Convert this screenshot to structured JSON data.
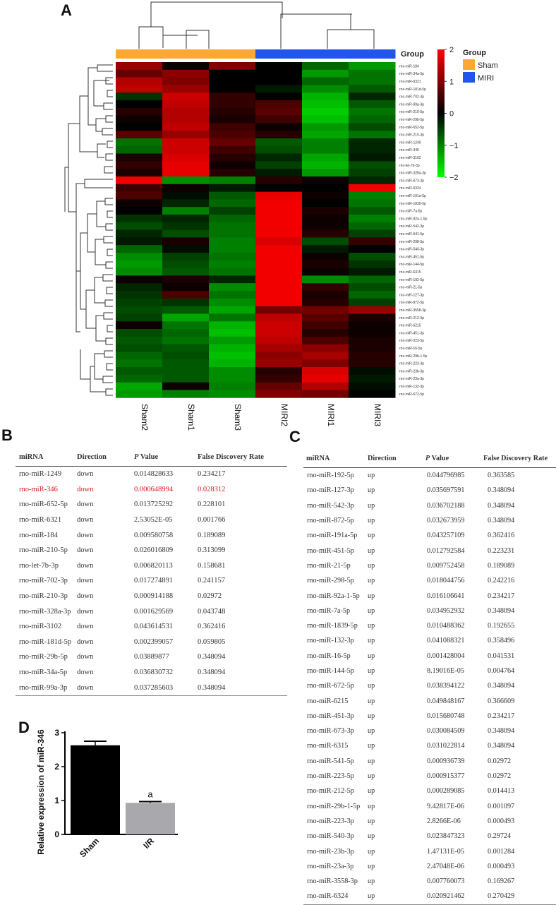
{
  "panels": {
    "a": "A",
    "b": "B",
    "c": "C",
    "d": "D"
  },
  "heatmap": {
    "group_bar_label": "Group",
    "legend_title": "Group",
    "legend_items": [
      {
        "name": "Sham",
        "color": "#ffa733"
      },
      {
        "name": "MIRI",
        "color": "#2255ee"
      }
    ],
    "colorbar_ticks": [
      "2",
      "1",
      "0",
      "−1",
      "−2"
    ],
    "colorbar_range": [
      -2,
      2
    ],
    "colors": {
      "low": "#00ff00",
      "mid": "#000000",
      "high": "#ff0000"
    },
    "columns": [
      "Sham2",
      "Sham1",
      "Sham3",
      "MIRI2",
      "MIRI1",
      "MIRI3"
    ],
    "column_groups": [
      "Sham",
      "Sham",
      "Sham",
      "MIRI",
      "MIRI",
      "MIRI"
    ],
    "rows": [
      {
        "name": "rno-miR-184",
        "values": [
          1.2,
          0.1,
          1.0,
          0.0,
          -0.8,
          -1.2
        ]
      },
      {
        "name": "rno-miR-34a-5p",
        "values": [
          0.8,
          1.1,
          0.0,
          0.0,
          -1.2,
          -0.9
        ]
      },
      {
        "name": "rno-miR-6321",
        "values": [
          1.4,
          1.0,
          0.0,
          0.0,
          -0.8,
          -0.9
        ]
      },
      {
        "name": "rno-miR-181d-5p",
        "values": [
          1.5,
          1.2,
          0.0,
          -0.2,
          -1.1,
          -0.7
        ]
      },
      {
        "name": "rno-miR-702-3p",
        "values": [
          -0.4,
          1.6,
          0.4,
          0.0,
          -1.4,
          -0.3
        ]
      },
      {
        "name": "rno-miR-99a-3p",
        "values": [
          0.0,
          1.5,
          0.4,
          0.6,
          -1.5,
          -0.7
        ]
      },
      {
        "name": "rno-miR-210-5p",
        "values": [
          0.3,
          1.4,
          0.3,
          0.7,
          -1.6,
          -0.9
        ]
      },
      {
        "name": "rno-miR-29b-5p",
        "values": [
          0.1,
          1.4,
          0.2,
          0.5,
          -1.5,
          -0.8
        ]
      },
      {
        "name": "rno-miR-652-5p",
        "values": [
          0.0,
          1.5,
          0.5,
          0.1,
          -1.2,
          -0.6
        ]
      },
      {
        "name": "rno-miR-210-3p",
        "values": [
          0.7,
          1.2,
          0.6,
          0.3,
          -1.3,
          -0.9
        ]
      },
      {
        "name": "rno-miR-1249",
        "values": [
          -0.9,
          1.6,
          0.8,
          -0.7,
          -1.0,
          -0.3
        ]
      },
      {
        "name": "rno-miR-346",
        "values": [
          -0.8,
          1.6,
          0.5,
          -0.6,
          -1.0,
          -0.3
        ]
      },
      {
        "name": "rno-miR-3102",
        "values": [
          0.2,
          1.7,
          0.3,
          -0.3,
          -1.3,
          -0.2
        ]
      },
      {
        "name": "rno-let-7b-3p",
        "values": [
          0.4,
          1.8,
          0.1,
          -0.5,
          -1.4,
          -0.6
        ]
      },
      {
        "name": "rno-miR-328a-3p",
        "values": [
          0.2,
          1.8,
          0.3,
          -0.2,
          -1.2,
          -0.5
        ]
      },
      {
        "name": "rno-miR-673-3p",
        "values": [
          1.9,
          -1.1,
          -1.0,
          0.3,
          0.1,
          -0.3
        ]
      },
      {
        "name": "rno-miR-6324",
        "values": [
          0.5,
          0.1,
          -0.2,
          0.0,
          0.0,
          1.9
        ]
      },
      {
        "name": "rno-miR-191a-5p",
        "values": [
          0.6,
          -0.1,
          -0.7,
          1.8,
          0.1,
          -1.0
        ]
      },
      {
        "name": "rno-miR-1839-5p",
        "values": [
          0.1,
          -0.3,
          -0.8,
          1.9,
          0.0,
          -0.9
        ]
      },
      {
        "name": "rno-miR-7a-5p",
        "values": [
          0.0,
          -1.0,
          -0.5,
          1.9,
          0.2,
          -0.7
        ]
      },
      {
        "name": "rno-miR-92a-1-5p",
        "values": [
          -0.4,
          -0.3,
          -0.8,
          1.9,
          0.1,
          -1.0
        ]
      },
      {
        "name": "rno-miR-542-3p",
        "values": [
          -0.6,
          -0.4,
          -0.9,
          1.9,
          0.1,
          -0.8
        ]
      },
      {
        "name": "rno-miR-541-5p",
        "values": [
          -0.3,
          -0.6,
          -0.9,
          1.9,
          0.3,
          -0.5
        ]
      },
      {
        "name": "rno-miR-298-5p",
        "values": [
          -0.2,
          0.2,
          -1.0,
          1.7,
          -0.6,
          0.4
        ]
      },
      {
        "name": "rno-miR-540-3p",
        "values": [
          -0.8,
          -0.1,
          -1.0,
          1.9,
          -0.2,
          0.0
        ]
      },
      {
        "name": "rno-miR-451-5p",
        "values": [
          -1.1,
          -0.5,
          -0.9,
          1.9,
          0.1,
          -0.6
        ]
      },
      {
        "name": "rno-miR-144-5p",
        "values": [
          -1.2,
          -0.6,
          -1.0,
          1.9,
          0.2,
          -0.4
        ]
      },
      {
        "name": "rno-miR-6315",
        "values": [
          -1.1,
          -0.7,
          -0.9,
          1.9,
          0.1,
          -0.2
        ]
      },
      {
        "name": "rno-miR-192-5p",
        "values": [
          0.1,
          0.2,
          -0.3,
          1.9,
          -1.1,
          -0.8
        ]
      },
      {
        "name": "rno-miR-21-5p",
        "values": [
          -0.3,
          0.1,
          -1.1,
          1.9,
          0.4,
          -0.6
        ]
      },
      {
        "name": "rno-miR-127-3p",
        "values": [
          -0.4,
          0.6,
          -0.9,
          1.9,
          0.2,
          -0.8
        ]
      },
      {
        "name": "rno-miR-872-5p",
        "values": [
          -0.5,
          -0.4,
          -1.1,
          1.9,
          0.3,
          -0.5
        ]
      },
      {
        "name": "rno-miR-3558-3p",
        "values": [
          -0.6,
          -0.7,
          -1.3,
          0.9,
          0.9,
          1.2
        ]
      },
      {
        "name": "rno-miR-212-5p",
        "values": [
          -0.5,
          -1.3,
          -0.9,
          1.5,
          0.7,
          0.2
        ]
      },
      {
        "name": "rno-miR-6215",
        "values": [
          0.1,
          -0.9,
          -1.4,
          1.6,
          0.5,
          0.1
        ]
      },
      {
        "name": "rno-miR-451-3p",
        "values": [
          -0.6,
          -0.8,
          -1.5,
          1.6,
          0.3,
          0.1
        ]
      },
      {
        "name": "rno-miR-223-5p",
        "values": [
          -0.7,
          -0.9,
          -1.2,
          1.5,
          0.6,
          0.2
        ]
      },
      {
        "name": "rno-miR-16-5p",
        "values": [
          -0.6,
          -0.7,
          -1.4,
          1.3,
          1.1,
          0.2
        ]
      },
      {
        "name": "rno-miR-29b-1-5p",
        "values": [
          -0.8,
          -0.6,
          -1.5,
          1.1,
          1.3,
          0.3
        ]
      },
      {
        "name": "rno-miR-223-3p",
        "values": [
          -0.9,
          -0.7,
          -1.4,
          1.2,
          1.0,
          0.3
        ]
      },
      {
        "name": "rno-miR-23b-3p",
        "values": [
          -0.7,
          -0.7,
          -1.1,
          0.3,
          1.7,
          -0.1
        ]
      },
      {
        "name": "rno-miR-23a-3p",
        "values": [
          -0.8,
          -0.7,
          -1.1,
          0.4,
          1.8,
          -0.2
        ]
      },
      {
        "name": "rno-miR-132-3p",
        "values": [
          -1.3,
          0.1,
          -1.0,
          0.8,
          1.4,
          -0.1
        ]
      },
      {
        "name": "rno-miR-672-5p",
        "values": [
          -1.2,
          -1.0,
          -1.1,
          1.0,
          0.9,
          0.0
        ]
      }
    ]
  },
  "tableB": {
    "headers": {
      "mirna": "miRNA",
      "direction": "Direction",
      "p_italic": "P",
      "p_rest": " Value",
      "fdr": "False Discovery Rate"
    },
    "highlight_color": "#d8181f",
    "rows": [
      {
        "mirna": "rno-miR-1249",
        "direction": "down",
        "p": "0.014828633",
        "fdr": "0.234217"
      },
      {
        "mirna": "rno-miR-346",
        "direction": "down",
        "p": "0.000648994",
        "fdr": "0.028312",
        "highlight": true
      },
      {
        "mirna": "rno-miR-652-5p",
        "direction": "down",
        "p": "0.013725292",
        "fdr": "0.228101"
      },
      {
        "mirna": "rno-miR-6321",
        "direction": "down",
        "p": "2.53052E-05",
        "fdr": "0.001766"
      },
      {
        "mirna": "rno-miR-184",
        "direction": "down",
        "p": "0.009580758",
        "fdr": "0.189089"
      },
      {
        "mirna": "rno-miR-210-5p",
        "direction": "down",
        "p": "0.026016809",
        "fdr": "0.313099"
      },
      {
        "mirna": "rno-let-7b-3p",
        "direction": "down",
        "p": "0.006820113",
        "fdr": "0.158681"
      },
      {
        "mirna": "rno-miR-702-3p",
        "direction": "down",
        "p": "0.017274891",
        "fdr": "0.241157"
      },
      {
        "mirna": "rno-miR-210-3p",
        "direction": "down",
        "p": "0.000914188",
        "fdr": "0.02972"
      },
      {
        "mirna": "rno-miR-328a-3p",
        "direction": "down",
        "p": "0.001629569",
        "fdr": "0.043748"
      },
      {
        "mirna": "rno-miR-3102",
        "direction": "down",
        "p": "0.043614531",
        "fdr": "0.362416"
      },
      {
        "mirna": "rno-miR-181d-5p",
        "direction": "down",
        "p": "0.002399057",
        "fdr": "0.059805"
      },
      {
        "mirna": "rno-miR-29b-5p",
        "direction": "down",
        "p": "0.03889877",
        "fdr": "0.348094"
      },
      {
        "mirna": "rno-miR-34a-5p",
        "direction": "down",
        "p": "0.036830732",
        "fdr": "0.348094"
      },
      {
        "mirna": "rno-miR-99a-3p",
        "direction": "down",
        "p": "0.037285603",
        "fdr": "0.348094"
      }
    ]
  },
  "tableC": {
    "headers": {
      "mirna": "miRNA",
      "direction": "Direction",
      "p_italic": "P",
      "p_rest": " Value",
      "fdr": "False Discovery Rate"
    },
    "rows": [
      {
        "mirna": "rno-miR-192-5p",
        "direction": "up",
        "p": "0.044796985",
        "fdr": "0.363585"
      },
      {
        "mirna": "rno-miR-127-3p",
        "direction": "up",
        "p": "0.035697591",
        "fdr": "0.348094"
      },
      {
        "mirna": "rno-miR-542-3p",
        "direction": "up",
        "p": "0.036702188",
        "fdr": "0.348094"
      },
      {
        "mirna": "rno-miR-872-5p",
        "direction": "up",
        "p": "0.032673959",
        "fdr": "0.348094"
      },
      {
        "mirna": "rno-miR-191a-5p",
        "direction": "up",
        "p": "0.043257109",
        "fdr": "0.362416"
      },
      {
        "mirna": "rno-miR-451-5p",
        "direction": "up",
        "p": "0.012792584",
        "fdr": "0.223231"
      },
      {
        "mirna": "rno-miR-21-5p",
        "direction": "up",
        "p": "0.009752458",
        "fdr": "0.189089"
      },
      {
        "mirna": "rno-miR-298-5p",
        "direction": "up",
        "p": "0.018044756",
        "fdr": "0.242216"
      },
      {
        "mirna": "rno-miR-92a-1-5p",
        "direction": "up",
        "p": "0.016106641",
        "fdr": "0.234217"
      },
      {
        "mirna": "rno-miR-7a-5p",
        "direction": "up",
        "p": "0.034952932",
        "fdr": "0.348094"
      },
      {
        "mirna": "rno-miR-1839-5p",
        "direction": "up",
        "p": "0.010488362",
        "fdr": "0.192655"
      },
      {
        "mirna": "rno-miR-132-3p",
        "direction": "up",
        "p": "0.041088321",
        "fdr": "0.358496"
      },
      {
        "mirna": "rno-miR-16-5p",
        "direction": "up",
        "p": "0.001428004",
        "fdr": "0.041531"
      },
      {
        "mirna": "rno-miR-144-5p",
        "direction": "up",
        "p": "8.19016E-05",
        "fdr": "0.004764"
      },
      {
        "mirna": "rno-miR-672-5p",
        "direction": "up",
        "p": "0.038394122",
        "fdr": "0.348094"
      },
      {
        "mirna": "rno-miR-6215",
        "direction": "up",
        "p": "0.049848167",
        "fdr": "0.366609"
      },
      {
        "mirna": "rno-miR-451-3p",
        "direction": "up",
        "p": "0.015680748",
        "fdr": "0.234217"
      },
      {
        "mirna": "rno-miR-673-3p",
        "direction": "up",
        "p": "0.030084509",
        "fdr": "0.348094"
      },
      {
        "mirna": "rno-miR-6315",
        "direction": "up",
        "p": "0.031022814",
        "fdr": "0.348094"
      },
      {
        "mirna": "rno-miR-541-5p",
        "direction": "up",
        "p": "0.000936739",
        "fdr": "0.02972"
      },
      {
        "mirna": "rno-miR-223-5p",
        "direction": "up",
        "p": "0.000915377",
        "fdr": "0.02972"
      },
      {
        "mirna": "rno-miR-212-5p",
        "direction": "up",
        "p": "0.000289085",
        "fdr": "0.014413"
      },
      {
        "mirna": "rno-miR-29b-1-5p",
        "direction": "up",
        "p": "9.42817E-06",
        "fdr": "0.001097"
      },
      {
        "mirna": "rno-miR-223-3p",
        "direction": "up",
        "p": "2.8266E-06",
        "fdr": "0.000493"
      },
      {
        "mirna": "rno-miR-540-3p",
        "direction": "up",
        "p": "0.023847323",
        "fdr": "0.29724"
      },
      {
        "mirna": "rno-miR-23b-3p",
        "direction": "up",
        "p": "1.47131E-05",
        "fdr": "0.001284"
      },
      {
        "mirna": "rno-miR-23a-3p",
        "direction": "up",
        "p": "2.47048E-06",
        "fdr": "0.000493"
      },
      {
        "mirna": "rno-miR-3558-3p",
        "direction": "up",
        "p": "0.007760073",
        "fdr": "0.169267"
      },
      {
        "mirna": "rno-miR-6324",
        "direction": "up",
        "p": "0.020921462",
        "fdr": "0.270429"
      }
    ]
  },
  "chart_data": [
    {
      "type": "heatmap",
      "title": "",
      "xlabel": "",
      "ylabel": "",
      "columns": [
        "Sham2",
        "Sham1",
        "Sham3",
        "MIRI2",
        "MIRI1",
        "MIRI3"
      ],
      "zlim": [
        -2,
        2
      ],
      "note": "values in #page-data heatmap.rows"
    },
    {
      "type": "bar",
      "categories": [
        "Sham",
        "I/R"
      ],
      "values": [
        2.63,
        0.93
      ],
      "errors": [
        0.12,
        0.04
      ],
      "ylabel": "Relative expression of miR-346",
      "ylim": [
        0,
        3
      ],
      "yticks": [
        "0",
        "1",
        "2",
        "3"
      ],
      "bar_colors": [
        "#000000",
        "#a8a8ad"
      ],
      "annotations": [
        {
          "category": "I/R",
          "text": "a"
        }
      ]
    }
  ]
}
